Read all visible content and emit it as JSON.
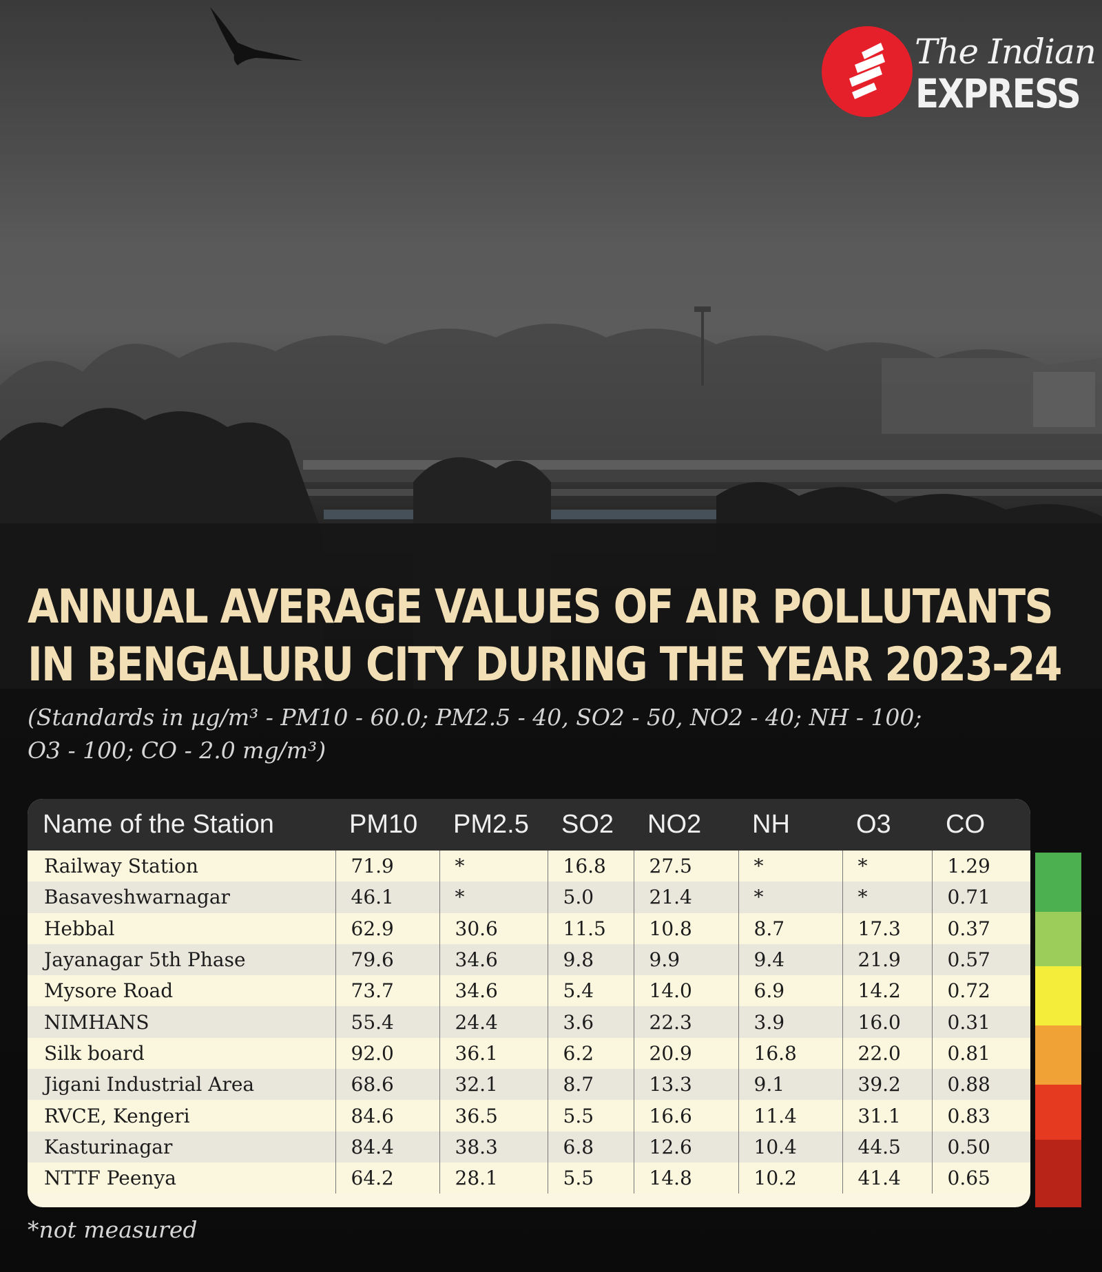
{
  "logo": {
    "line1": "The Indian",
    "line2": "EXPRESS",
    "color": "#e5202a"
  },
  "title": {
    "line1": "ANNUAL AVERAGE VALUES OF AIR POLLUTANTS",
    "line2": "IN BENGALURU CITY DURING THE YEAR 2023-24"
  },
  "subtitle": {
    "line1": "(Standards in µg/m³ - PM10 - 60.0; PM2.5 - 40, SO2 - 50, NO2 - 40; NH - 100;",
    "line2": "O3 - 100; CO - 2.0 mg/m³)"
  },
  "table": {
    "headers": [
      "Name of the Station",
      "PM10",
      "PM2.5",
      "SO2",
      "NO2",
      "NH",
      "O3",
      "CO"
    ],
    "rows": [
      [
        "Railway Station",
        "71.9",
        "*",
        "16.8",
        "27.5",
        "*",
        "*",
        "1.29"
      ],
      [
        "Basaveshwarnagar",
        "46.1",
        "*",
        "5.0",
        "21.4",
        "*",
        "*",
        "0.71"
      ],
      [
        "Hebbal",
        "62.9",
        "30.6",
        "11.5",
        "10.8",
        "8.7",
        "17.3",
        "0.37"
      ],
      [
        "Jayanagar 5th Phase",
        "79.6",
        "34.6",
        "9.8",
        "9.9",
        "9.4",
        "21.9",
        "0.57"
      ],
      [
        "Mysore Road",
        "73.7",
        "34.6",
        "5.4",
        "14.0",
        "6.9",
        "14.2",
        "0.72"
      ],
      [
        "NIMHANS",
        "55.4",
        "24.4",
        "3.6",
        "22.3",
        "3.9",
        "16.0",
        "0.31"
      ],
      [
        "Silk board",
        "92.0",
        "36.1",
        "6.2",
        "20.9",
        "16.8",
        "22.0",
        "0.81"
      ],
      [
        "Jigani Industrial Area",
        "68.6",
        "32.1",
        "8.7",
        "13.3",
        "9.1",
        "39.2",
        "0.88"
      ],
      [
        "RVCE, Kengeri",
        "84.6",
        "36.5",
        "5.5",
        "16.6",
        "11.4",
        "31.1",
        "0.83"
      ],
      [
        "Kasturinagar",
        "84.4",
        "38.3",
        "6.8",
        "12.6",
        "10.4",
        "44.5",
        "0.50"
      ],
      [
        "NTTF Peenya",
        "64.2",
        "28.1",
        "5.5",
        "14.8",
        "10.2",
        "41.4",
        "0.65"
      ]
    ]
  },
  "scale_colors": [
    "#4caf50",
    "#9ccc5a",
    "#f4ee3a",
    "#f0a236",
    "#e53a20",
    "#b82418"
  ],
  "footnote": "*not measured",
  "colors": {
    "title": "#f3dfb6",
    "header_bg": "#2d2d2d",
    "row_odd": "#fbf7df",
    "row_even": "#e9e7dc"
  }
}
